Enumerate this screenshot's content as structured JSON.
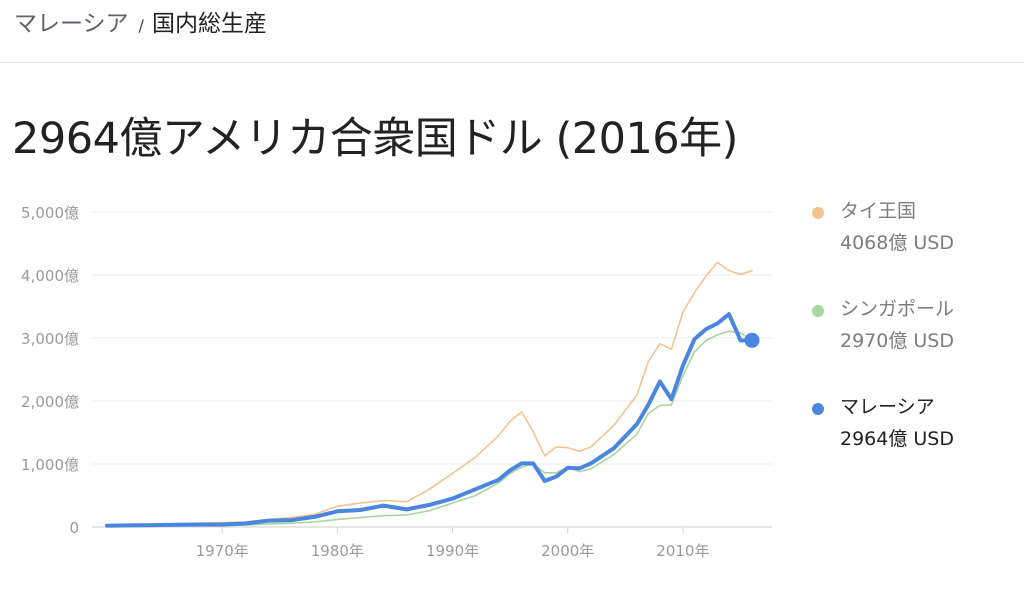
{
  "breadcrumb": {
    "parent": "マレーシア",
    "separator": "/",
    "current": "国内総生産"
  },
  "page_title": "2964億アメリカ合衆国ドル (2016年)",
  "legend": [
    {
      "name": "タイ王国",
      "value": "4068億 USD",
      "color": "#f4c28f",
      "state": "dim"
    },
    {
      "name": "シンガポール",
      "value": "2970億 USD",
      "color": "#a8d5a2",
      "state": "dim"
    },
    {
      "name": "マレーシア",
      "value": "2964億 USD",
      "color": "#4a86e0",
      "state": "active"
    }
  ],
  "chart_data": {
    "type": "line",
    "y_ticks": [
      0,
      1000,
      2000,
      3000,
      4000,
      5000
    ],
    "y_tick_labels": [
      "0",
      "1,000億",
      "2,000億",
      "3,000億",
      "4,000億",
      "5,000億"
    ],
    "x_ticks": [
      1970,
      1980,
      1990,
      2000,
      2010
    ],
    "x_tick_labels": [
      "1970年",
      "1980年",
      "1990年",
      "2000年",
      "2010年"
    ],
    "xlim": [
      1960,
      2016
    ],
    "ylim": [
      0,
      5000
    ],
    "grid": true,
    "legend_placement": "right",
    "x": [
      1960,
      1962,
      1964,
      1966,
      1968,
      1970,
      1972,
      1974,
      1976,
      1978,
      1980,
      1982,
      1984,
      1986,
      1988,
      1990,
      1992,
      1994,
      1995,
      1996,
      1997,
      1998,
      1999,
      2000,
      2001,
      2002,
      2004,
      2006,
      2007,
      2008,
      2009,
      2010,
      2011,
      2012,
      2013,
      2014,
      2015,
      2016
    ],
    "series": [
      {
        "name": "タイ王国",
        "color": "#f4c28f",
        "values": [
          30,
          35,
          40,
          50,
          60,
          70,
          80,
          120,
          150,
          200,
          330,
          380,
          420,
          400,
          600,
          850,
          1110,
          1450,
          1680,
          1830,
          1510,
          1130,
          1270,
          1260,
          1200,
          1270,
          1610,
          2090,
          2620,
          2910,
          2820,
          3410,
          3720,
          3980,
          4200,
          4070,
          4010,
          4068
        ]
      },
      {
        "name": "シンガポール",
        "color": "#a8d5a2",
        "values": [
          10,
          10,
          12,
          15,
          20,
          20,
          30,
          50,
          60,
          80,
          120,
          150,
          180,
          190,
          260,
          380,
          500,
          700,
          850,
          950,
          1000,
          860,
          860,
          950,
          880,
          920,
          1150,
          1470,
          1800,
          1930,
          1940,
          2400,
          2780,
          2960,
          3050,
          3110,
          3080,
          2970
        ]
      },
      {
        "name": "マレーシア",
        "color": "#4a86e0",
        "values": [
          20,
          25,
          30,
          35,
          40,
          40,
          55,
          100,
          110,
          160,
          250,
          270,
          340,
          280,
          350,
          450,
          600,
          750,
          900,
          1010,
          1010,
          730,
          800,
          940,
          930,
          1010,
          1250,
          1630,
          1940,
          2310,
          2030,
          2560,
          2980,
          3140,
          3230,
          3380,
          2960,
          2964
        ]
      }
    ]
  }
}
